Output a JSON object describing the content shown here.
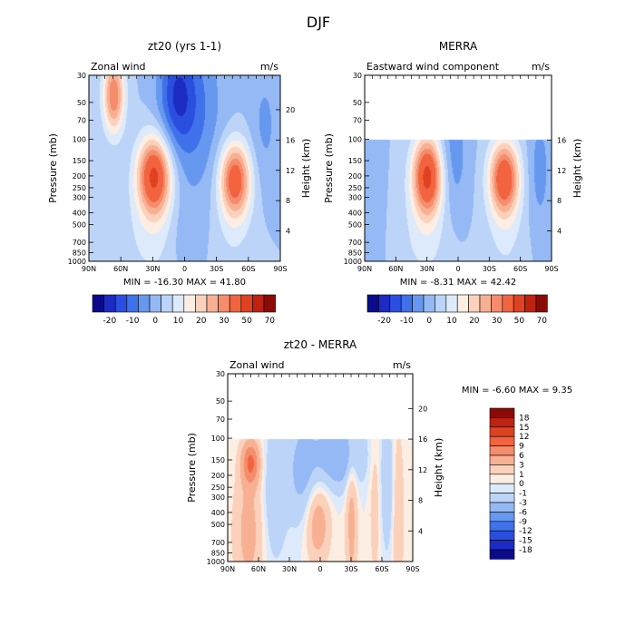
{
  "season_title": "DJF",
  "chart_data": [
    {
      "type": "heatmap",
      "panel": "model",
      "title": "zt20 (yrs 1-1)",
      "left_label": "Zonal wind",
      "units": "m/s",
      "xlabel": "",
      "ylabel": "Pressure (mb)",
      "ylabel_right": "Height (km)",
      "x_ticks": [
        "90N",
        "60N",
        "30N",
        "0",
        "30S",
        "60S",
        "90S"
      ],
      "y_ticks": [
        30,
        50,
        70,
        100,
        150,
        200,
        250,
        300,
        400,
        500,
        700,
        850,
        1000
      ],
      "height_ticks": [
        4,
        8,
        12,
        16,
        20
      ],
      "ylim": [
        1000,
        30
      ],
      "data_top_pressure": 30,
      "stats_text": "MIN =  -16.30   MAX =  41.80",
      "min": -16.3,
      "max": 41.8,
      "colorbar_labels": [
        "-20",
        "-10",
        "0",
        "10",
        "20",
        "30",
        "50",
        "70"
      ],
      "colorbar_levels": [
        -25,
        -20,
        -15,
        -10,
        -5,
        0,
        5,
        10,
        15,
        20,
        25,
        30,
        40,
        50,
        60,
        70
      ],
      "jets": [
        {
          "lat": 28,
          "pressure": 200,
          "value": 41.8
        },
        {
          "lat": -48,
          "pressure": 220,
          "value": 36.0
        },
        {
          "lat": 65,
          "pressure": 40,
          "value": 30.0
        }
      ],
      "easterly_min": {
        "lat": 5,
        "pressure": 40,
        "value": -16.3
      }
    },
    {
      "type": "heatmap",
      "panel": "reanalysis",
      "title": "MERRA",
      "left_label": "Eastward wind component",
      "units": "m/s",
      "xlabel": "",
      "ylabel": "Pressure (mb)",
      "ylabel_right": "Height (km)",
      "x_ticks": [
        "90N",
        "60N",
        "30N",
        "0",
        "30S",
        "60S",
        "90S"
      ],
      "y_ticks": [
        30,
        50,
        70,
        100,
        150,
        200,
        250,
        300,
        400,
        500,
        700,
        850,
        1000
      ],
      "height_ticks": [
        4,
        8,
        12,
        16
      ],
      "ylim": [
        1000,
        30
      ],
      "data_top_pressure": 100,
      "stats_text": "MIN =   -8.31   MAX =  42.42",
      "min": -8.31,
      "max": 42.42,
      "colorbar_labels": [
        "-20",
        "-10",
        "0",
        "10",
        "20",
        "30",
        "50",
        "70"
      ],
      "colorbar_levels": [
        -25,
        -20,
        -15,
        -10,
        -5,
        0,
        5,
        10,
        15,
        20,
        25,
        30,
        40,
        50,
        60,
        70
      ],
      "jets": [
        {
          "lat": 30,
          "pressure": 200,
          "value": 42.4
        },
        {
          "lat": -45,
          "pressure": 210,
          "value": 38.0
        }
      ]
    },
    {
      "type": "heatmap",
      "panel": "difference",
      "title": "zt20 - MERRA",
      "left_label": "Zonal wind",
      "units": "m/s",
      "xlabel": "",
      "ylabel": "Pressure (mb)",
      "ylabel_right": "Height (km)",
      "x_ticks": [
        "90N",
        "60N",
        "30N",
        "0",
        "30S",
        "60S",
        "90S"
      ],
      "y_ticks": [
        30,
        50,
        70,
        100,
        150,
        200,
        250,
        300,
        400,
        500,
        700,
        850,
        1000
      ],
      "height_ticks": [
        4,
        8,
        12,
        16,
        20
      ],
      "ylim": [
        1000,
        30
      ],
      "data_top_pressure": 100,
      "stats_text": "MIN =   -6.60   MAX =    9.35",
      "min": -6.6,
      "max": 9.35,
      "colorbar_labels": [
        "18",
        "15",
        "12",
        "9",
        "6",
        "3",
        "1",
        "0",
        "-1",
        "-3",
        "-6",
        "-9",
        "-12",
        "-15",
        "-18"
      ]
    }
  ],
  "palettes": {
    "diverging_16": [
      "#0c0a8c",
      "#1c2bc4",
      "#2a4fe0",
      "#3f71ea",
      "#6798ef",
      "#94b9f4",
      "#bcd4f8",
      "#ddeafb",
      "#fdeee3",
      "#fbd1bc",
      "#f8b093",
      "#f58c6c",
      "#f2633f",
      "#df4220",
      "#bf2210",
      "#8b0a06"
    ],
    "difference_16": [
      "#8b0a06",
      "#bf2210",
      "#df4220",
      "#f2633f",
      "#f58c6c",
      "#f8b093",
      "#fbd1bc",
      "#fdeee3",
      "#ddeafb",
      "#bcd4f8",
      "#94b9f4",
      "#6798ef",
      "#3f71ea",
      "#2a4fe0",
      "#1c2bc4",
      "#0c0a8c"
    ]
  }
}
